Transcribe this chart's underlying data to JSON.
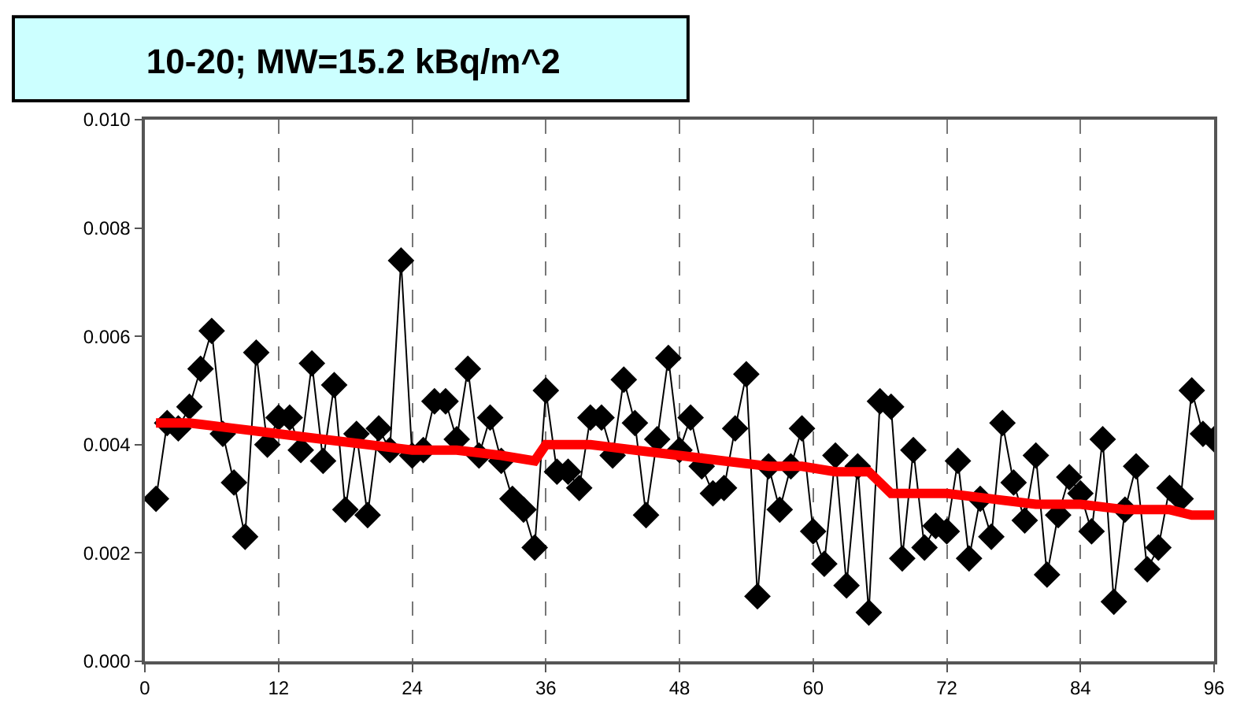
{
  "chart_data": {
    "type": "line",
    "title": "10-20; MW=15.2 kBq/m^2",
    "xlim": [
      0,
      96
    ],
    "xticks": [
      0,
      12,
      24,
      36,
      48,
      60,
      72,
      84,
      96
    ],
    "ylim": [
      0,
      0.01
    ],
    "yticks": [
      {
        "value": 0,
        "label": "0.000"
      },
      {
        "value": 0.002,
        "label": "0.002"
      },
      {
        "value": 0.004,
        "label": "0.004"
      },
      {
        "value": 0.006,
        "label": "0.006"
      },
      {
        "value": 0.008,
        "label": "0.008"
      },
      {
        "value": 0.01,
        "label": "0.010"
      }
    ],
    "grid": "x",
    "series": [
      {
        "color": "#000000",
        "marker": "diamond",
        "x": [
          1,
          2,
          3,
          4,
          5,
          6,
          7,
          8,
          9,
          10,
          11,
          12,
          13,
          14,
          15,
          16,
          17,
          18,
          19,
          20,
          21,
          22,
          23,
          24,
          25,
          26,
          27,
          28,
          29,
          30,
          31,
          32,
          33,
          34,
          35,
          36,
          37,
          38,
          39,
          40,
          41,
          42,
          43,
          44,
          45,
          46,
          47,
          48,
          49,
          50,
          51,
          52,
          53,
          54,
          55,
          56,
          57,
          58,
          59,
          60,
          61,
          62,
          63,
          64,
          65,
          66,
          67,
          68,
          69,
          70,
          71,
          72,
          73,
          74,
          75,
          76,
          77,
          78,
          79,
          80,
          81,
          82,
          83,
          84,
          85,
          86,
          87,
          88,
          89,
          90,
          91,
          92,
          93,
          94,
          95,
          96
        ],
        "values": [
          0.003,
          0.0044,
          0.0043,
          0.0047,
          0.0054,
          0.0061,
          0.0042,
          0.0033,
          0.0023,
          0.0057,
          0.004,
          0.0045,
          0.0045,
          0.0039,
          0.0055,
          0.0037,
          0.0051,
          0.0028,
          0.0042,
          0.0027,
          0.0043,
          0.0039,
          0.0074,
          0.0038,
          0.0039,
          0.0048,
          0.0048,
          0.0041,
          0.0054,
          0.0038,
          0.0045,
          0.0037,
          0.003,
          0.0028,
          0.0021,
          0.005,
          0.0035,
          0.0035,
          0.0032,
          0.0045,
          0.0045,
          0.0038,
          0.0052,
          0.0044,
          0.0027,
          0.0041,
          0.0056,
          0.0039,
          0.0045,
          0.0036,
          0.0031,
          0.0032,
          0.0043,
          0.0053,
          0.0012,
          0.0036,
          0.0028,
          0.0036,
          0.0043,
          0.0024,
          0.0018,
          0.0038,
          0.0014,
          0.0036,
          0.0009,
          0.0048,
          0.0047,
          0.0019,
          0.0039,
          0.0021,
          0.0025,
          0.0024,
          0.0037,
          0.0019,
          0.003,
          0.0023,
          0.0044,
          0.0033,
          0.0026,
          0.0038,
          0.0016,
          0.0027,
          0.0034,
          0.0031,
          0.0024,
          0.0041,
          0.0011,
          0.0028,
          0.0036,
          0.0017,
          0.0021,
          0.0032,
          0.003,
          0.005,
          0.0042,
          0.0041
        ]
      },
      {
        "color": "#ff0000",
        "marker": "none",
        "x": [
          1,
          4,
          8,
          12,
          16,
          20,
          24,
          28,
          32,
          35,
          36,
          40,
          44,
          48,
          52,
          56,
          59,
          62,
          65,
          66,
          67,
          72,
          76,
          80,
          84,
          88,
          92,
          94,
          96
        ],
        "values": [
          0.0044,
          0.0044,
          0.0043,
          0.0042,
          0.0041,
          0.004,
          0.0039,
          0.0039,
          0.0038,
          0.0037,
          0.004,
          0.004,
          0.0039,
          0.0038,
          0.0037,
          0.0036,
          0.0036,
          0.0035,
          0.0035,
          0.0033,
          0.0031,
          0.0031,
          0.003,
          0.0029,
          0.0029,
          0.0028,
          0.0028,
          0.0027,
          0.0027
        ]
      }
    ]
  }
}
